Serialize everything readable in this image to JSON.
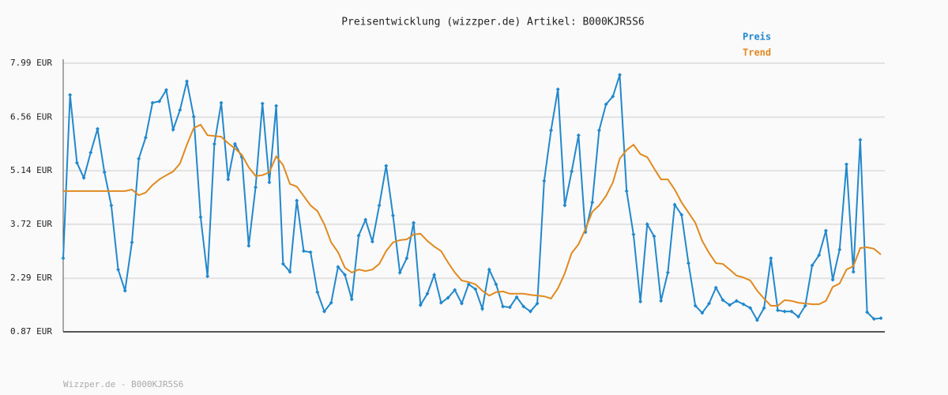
{
  "chart_data": {
    "type": "line",
    "title": "Preisentwicklung (wizzper.de) Artikel: B000KJR5S6",
    "source": "Wizzper.de - B000KJR5S6",
    "legend": "top-right",
    "grid": true,
    "ylim": [
      0.87,
      7.99
    ],
    "yticks": [
      {
        "value": 0.87,
        "label": "0.87 EUR"
      },
      {
        "value": 2.29,
        "label": "2.29 EUR"
      },
      {
        "value": 3.72,
        "label": "3.72 EUR"
      },
      {
        "value": 5.14,
        "label": "5.14 EUR"
      },
      {
        "value": 6.56,
        "label": "6.56 EUR"
      },
      {
        "value": 7.99,
        "label": "7.99 EUR"
      }
    ],
    "series": [
      {
        "name": "Preis",
        "color": "#2288cc",
        "markers": true,
        "values": [
          2.82,
          7.15,
          5.35,
          4.95,
          5.62,
          6.25,
          5.1,
          4.22,
          2.52,
          1.96,
          3.24,
          5.46,
          6.02,
          6.94,
          6.98,
          7.28,
          6.23,
          6.75,
          7.51,
          6.57,
          3.91,
          2.34,
          5.85,
          6.94,
          4.91,
          5.85,
          5.5,
          3.15,
          4.7,
          6.92,
          4.83,
          6.86,
          2.67,
          2.46,
          4.35,
          3.01,
          2.98,
          1.92,
          1.41,
          1.64,
          2.59,
          2.38,
          1.73,
          3.42,
          3.84,
          3.26,
          4.22,
          5.27,
          3.95,
          2.44,
          2.82,
          3.76,
          1.58,
          1.88,
          2.38,
          1.64,
          1.77,
          1.98,
          1.62,
          2.13,
          2.0,
          1.48,
          2.52,
          2.13,
          1.54,
          1.52,
          1.79,
          1.54,
          1.41,
          1.62,
          4.87,
          6.21,
          7.3,
          4.22,
          5.12,
          6.08,
          3.51,
          4.3,
          6.21,
          6.9,
          7.11,
          7.68,
          4.6,
          3.45,
          1.67,
          3.72,
          3.4,
          1.69,
          2.44,
          4.24,
          3.97,
          2.69,
          1.56,
          1.37,
          1.62,
          2.04,
          1.71,
          1.58,
          1.69,
          1.6,
          1.5,
          1.18,
          1.5,
          2.82,
          1.44,
          1.41,
          1.41,
          1.27,
          1.56,
          2.63,
          2.9,
          3.55,
          2.25,
          3.05,
          5.31,
          2.46,
          5.96,
          1.39,
          1.21,
          1.23
        ]
      },
      {
        "name": "Trend",
        "color": "#e08a1f",
        "markers": false,
        "values": [
          4.6,
          4.6,
          4.6,
          4.6,
          4.6,
          4.6,
          4.6,
          4.6,
          4.6,
          4.6,
          4.64,
          4.49,
          4.56,
          4.76,
          4.91,
          5.02,
          5.12,
          5.33,
          5.83,
          6.27,
          6.36,
          6.08,
          6.06,
          6.04,
          5.87,
          5.73,
          5.56,
          5.23,
          5.0,
          5.02,
          5.1,
          5.52,
          5.29,
          4.79,
          4.72,
          4.47,
          4.22,
          4.07,
          3.72,
          3.24,
          2.98,
          2.57,
          2.44,
          2.52,
          2.48,
          2.52,
          2.67,
          3.01,
          3.24,
          3.3,
          3.32,
          3.45,
          3.47,
          3.28,
          3.13,
          3.01,
          2.71,
          2.44,
          2.23,
          2.19,
          2.13,
          1.96,
          1.83,
          1.92,
          1.94,
          1.88,
          1.88,
          1.88,
          1.85,
          1.83,
          1.81,
          1.75,
          2.02,
          2.42,
          2.96,
          3.19,
          3.59,
          4.05,
          4.22,
          4.47,
          4.83,
          5.46,
          5.69,
          5.83,
          5.58,
          5.5,
          5.2,
          4.91,
          4.91,
          4.64,
          4.3,
          4.03,
          3.76,
          3.28,
          2.96,
          2.69,
          2.67,
          2.52,
          2.36,
          2.31,
          2.23,
          1.96,
          1.75,
          1.56,
          1.56,
          1.71,
          1.69,
          1.64,
          1.62,
          1.6,
          1.6,
          1.69,
          2.06,
          2.15,
          2.52,
          2.61,
          3.09,
          3.11,
          3.07,
          2.92
        ]
      }
    ]
  }
}
